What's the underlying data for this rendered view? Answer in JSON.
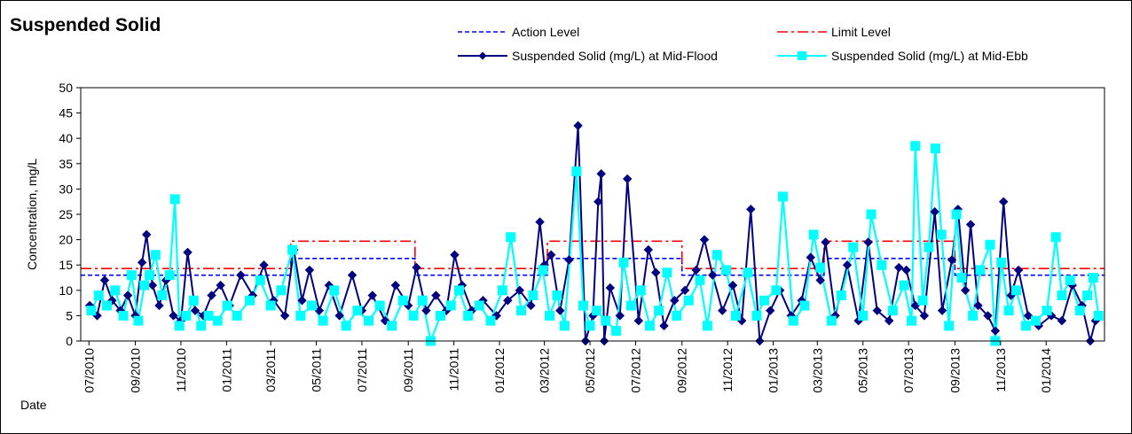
{
  "chart_data": {
    "type": "line",
    "title": "Suspended Solid",
    "xlabel": "Date",
    "ylabel": "Concentration, mg/L",
    "ylim": [
      0,
      50
    ],
    "yticks": [
      0,
      5,
      10,
      15,
      20,
      25,
      30,
      35,
      40,
      45,
      50
    ],
    "xlim": [
      "2010-06-20",
      "2014-03-20"
    ],
    "xticks": [
      "07/2010",
      "09/2010",
      "11/2010",
      "01/2011",
      "03/2011",
      "05/2011",
      "07/2011",
      "09/2011",
      "11/2011",
      "01/2012",
      "03/2012",
      "05/2012",
      "07/2012",
      "09/2012",
      "11/2012",
      "01/2013",
      "03/2013",
      "05/2013",
      "07/2013",
      "09/2013",
      "11/2013",
      "01/2014"
    ],
    "grid": false,
    "legend_position": "top-right",
    "series": [
      {
        "name": "Action Level",
        "style": "dashed",
        "color": "#0000ff",
        "steps": [
          {
            "x": "2010-06-20",
            "y": 13
          },
          {
            "x": "2011-03-28",
            "y": 16.3
          },
          {
            "x": "2011-09-10",
            "y": 13
          },
          {
            "x": "2012-03-05",
            "y": 16.3
          },
          {
            "x": "2012-09-01",
            "y": 13
          },
          {
            "x": "2013-03-10",
            "y": 16.3
          },
          {
            "x": "2013-09-01",
            "y": 13
          },
          {
            "x": "2014-03-20",
            "y": 13
          }
        ]
      },
      {
        "name": "Limit Level",
        "style": "dashdot",
        "color": "#ff0000",
        "steps": [
          {
            "x": "2010-06-20",
            "y": 14.3
          },
          {
            "x": "2011-03-28",
            "y": 19.7
          },
          {
            "x": "2011-09-10",
            "y": 14.3
          },
          {
            "x": "2012-03-05",
            "y": 19.7
          },
          {
            "x": "2012-09-01",
            "y": 14.3
          },
          {
            "x": "2013-03-10",
            "y": 19.7
          },
          {
            "x": "2013-09-01",
            "y": 14.3
          },
          {
            "x": "2014-03-20",
            "y": 14.3
          }
        ]
      },
      {
        "name": "Suspended Solid (mg/L) at Mid-Flood",
        "color": "#000080",
        "marker": "diamond",
        "points": [
          [
            "2010-07-02",
            7
          ],
          [
            "2010-07-12",
            5
          ],
          [
            "2010-07-22",
            12
          ],
          [
            "2010-08-01",
            8
          ],
          [
            "2010-08-12",
            6
          ],
          [
            "2010-08-22",
            9
          ],
          [
            "2010-09-01",
            5
          ],
          [
            "2010-09-10",
            15.5
          ],
          [
            "2010-09-16",
            21
          ],
          [
            "2010-09-24",
            11
          ],
          [
            "2010-10-03",
            7
          ],
          [
            "2010-10-12",
            12
          ],
          [
            "2010-10-22",
            5
          ],
          [
            "2010-11-01",
            4
          ],
          [
            "2010-11-10",
            17.5
          ],
          [
            "2010-11-20",
            6
          ],
          [
            "2010-12-01",
            5
          ],
          [
            "2010-12-12",
            9
          ],
          [
            "2010-12-24",
            11
          ],
          [
            "2011-01-05",
            7
          ],
          [
            "2011-01-20",
            13
          ],
          [
            "2011-02-05",
            9
          ],
          [
            "2011-02-20",
            15
          ],
          [
            "2011-03-05",
            8
          ],
          [
            "2011-03-20",
            5
          ],
          [
            "2011-04-01",
            18
          ],
          [
            "2011-04-12",
            8
          ],
          [
            "2011-04-22",
            14
          ],
          [
            "2011-05-05",
            6
          ],
          [
            "2011-05-18",
            11
          ],
          [
            "2011-06-01",
            5
          ],
          [
            "2011-06-18",
            13
          ],
          [
            "2011-07-01",
            6
          ],
          [
            "2011-07-15",
            9
          ],
          [
            "2011-08-01",
            4
          ],
          [
            "2011-08-15",
            11
          ],
          [
            "2011-09-01",
            7
          ],
          [
            "2011-09-12",
            14.5
          ],
          [
            "2011-09-25",
            6
          ],
          [
            "2011-10-08",
            9
          ],
          [
            "2011-10-22",
            6
          ],
          [
            "2011-11-02",
            17
          ],
          [
            "2011-11-12",
            11
          ],
          [
            "2011-11-25",
            6
          ],
          [
            "2011-12-10",
            8
          ],
          [
            "2011-12-28",
            5
          ],
          [
            "2012-01-12",
            8
          ],
          [
            "2012-01-28",
            10
          ],
          [
            "2012-02-12",
            7
          ],
          [
            "2012-02-24",
            23.5
          ],
          [
            "2012-03-01",
            15
          ],
          [
            "2012-03-10",
            17
          ],
          [
            "2012-03-22",
            6
          ],
          [
            "2012-04-03",
            16
          ],
          [
            "2012-04-15",
            42.5
          ],
          [
            "2012-04-25",
            0
          ],
          [
            "2012-05-05",
            5
          ],
          [
            "2012-05-12",
            27.5
          ],
          [
            "2012-05-16",
            33
          ],
          [
            "2012-05-20",
            0
          ],
          [
            "2012-05-28",
            10.5
          ],
          [
            "2012-06-10",
            5
          ],
          [
            "2012-06-20",
            32
          ],
          [
            "2012-07-05",
            4
          ],
          [
            "2012-07-18",
            18
          ],
          [
            "2012-07-28",
            13.5
          ],
          [
            "2012-08-08",
            3
          ],
          [
            "2012-08-22",
            8
          ],
          [
            "2012-09-05",
            10
          ],
          [
            "2012-09-20",
            14
          ],
          [
            "2012-10-01",
            20
          ],
          [
            "2012-10-12",
            13
          ],
          [
            "2012-10-25",
            6
          ],
          [
            "2012-11-08",
            11
          ],
          [
            "2012-11-20",
            4
          ],
          [
            "2012-12-02",
            26
          ],
          [
            "2012-12-14",
            0
          ],
          [
            "2012-12-28",
            6
          ],
          [
            "2013-01-10",
            10
          ],
          [
            "2013-01-25",
            5
          ],
          [
            "2013-02-08",
            8
          ],
          [
            "2013-02-20",
            16.5
          ],
          [
            "2013-03-05",
            12
          ],
          [
            "2013-03-12",
            19.5
          ],
          [
            "2013-03-25",
            5
          ],
          [
            "2013-04-10",
            15
          ],
          [
            "2013-04-25",
            4
          ],
          [
            "2013-05-08",
            19.5
          ],
          [
            "2013-05-20",
            6
          ],
          [
            "2013-06-05",
            4
          ],
          [
            "2013-06-18",
            14.5
          ],
          [
            "2013-06-28",
            14
          ],
          [
            "2013-07-10",
            7
          ],
          [
            "2013-07-22",
            5
          ],
          [
            "2013-08-05",
            25.5
          ],
          [
            "2013-08-15",
            6
          ],
          [
            "2013-08-28",
            16
          ],
          [
            "2013-09-05",
            26
          ],
          [
            "2013-09-15",
            10
          ],
          [
            "2013-09-22",
            23
          ],
          [
            "2013-10-02",
            7
          ],
          [
            "2013-10-15",
            5
          ],
          [
            "2013-10-25",
            2
          ],
          [
            "2013-11-05",
            27.5
          ],
          [
            "2013-11-15",
            9
          ],
          [
            "2013-11-25",
            14
          ],
          [
            "2013-12-08",
            5
          ],
          [
            "2013-12-22",
            3
          ],
          [
            "2014-01-08",
            5
          ],
          [
            "2014-01-22",
            4
          ],
          [
            "2014-02-05",
            11
          ],
          [
            "2014-02-18",
            7
          ],
          [
            "2014-03-01",
            0
          ],
          [
            "2014-03-08",
            4
          ]
        ]
      },
      {
        "name": "Suspended Solid (mg/L) at Mid-Ebb",
        "color": "#00ffff",
        "marker": "square",
        "points": [
          [
            "2010-07-04",
            6
          ],
          [
            "2010-07-14",
            9
          ],
          [
            "2010-07-25",
            7
          ],
          [
            "2010-08-05",
            10
          ],
          [
            "2010-08-16",
            5
          ],
          [
            "2010-08-27",
            13
          ],
          [
            "2010-09-05",
            4
          ],
          [
            "2010-09-13",
            11
          ],
          [
            "2010-09-20",
            13
          ],
          [
            "2010-09-28",
            17
          ],
          [
            "2010-10-07",
            9
          ],
          [
            "2010-10-17",
            13
          ],
          [
            "2010-10-24",
            28
          ],
          [
            "2010-10-30",
            3
          ],
          [
            "2010-11-08",
            5
          ],
          [
            "2010-11-18",
            8
          ],
          [
            "2010-11-28",
            3
          ],
          [
            "2010-12-08",
            5
          ],
          [
            "2010-12-20",
            4
          ],
          [
            "2011-01-02",
            7
          ],
          [
            "2011-01-15",
            5
          ],
          [
            "2011-02-01",
            8
          ],
          [
            "2011-02-15",
            12
          ],
          [
            "2011-03-01",
            7
          ],
          [
            "2011-03-15",
            10
          ],
          [
            "2011-03-30",
            18
          ],
          [
            "2011-04-10",
            5
          ],
          [
            "2011-04-25",
            7
          ],
          [
            "2011-05-10",
            4
          ],
          [
            "2011-05-25",
            10
          ],
          [
            "2011-06-10",
            3
          ],
          [
            "2011-06-25",
            6
          ],
          [
            "2011-07-10",
            4
          ],
          [
            "2011-07-25",
            7
          ],
          [
            "2011-08-10",
            3
          ],
          [
            "2011-08-25",
            8
          ],
          [
            "2011-09-08",
            5
          ],
          [
            "2011-09-20",
            8
          ],
          [
            "2011-10-01",
            0
          ],
          [
            "2011-10-14",
            5
          ],
          [
            "2011-10-28",
            7
          ],
          [
            "2011-11-08",
            10
          ],
          [
            "2011-11-20",
            5
          ],
          [
            "2011-12-05",
            7
          ],
          [
            "2011-12-20",
            4
          ],
          [
            "2012-01-05",
            10
          ],
          [
            "2012-01-16",
            20.5
          ],
          [
            "2012-01-30",
            6
          ],
          [
            "2012-02-15",
            9
          ],
          [
            "2012-02-28",
            14
          ],
          [
            "2012-03-08",
            5
          ],
          [
            "2012-03-18",
            9
          ],
          [
            "2012-03-28",
            3
          ],
          [
            "2012-04-13",
            33.5
          ],
          [
            "2012-04-22",
            7
          ],
          [
            "2012-05-01",
            3
          ],
          [
            "2012-05-10",
            6
          ],
          [
            "2012-05-22",
            4
          ],
          [
            "2012-06-05",
            2
          ],
          [
            "2012-06-15",
            15.5
          ],
          [
            "2012-06-25",
            7
          ],
          [
            "2012-07-08",
            10
          ],
          [
            "2012-07-20",
            3
          ],
          [
            "2012-08-01",
            6
          ],
          [
            "2012-08-12",
            13.5
          ],
          [
            "2012-08-25",
            5
          ],
          [
            "2012-09-10",
            8
          ],
          [
            "2012-09-25",
            12
          ],
          [
            "2012-10-05",
            3
          ],
          [
            "2012-10-18",
            17
          ],
          [
            "2012-10-30",
            14
          ],
          [
            "2012-11-12",
            5
          ],
          [
            "2012-11-28",
            13.5
          ],
          [
            "2012-12-10",
            5
          ],
          [
            "2012-12-20",
            8
          ],
          [
            "2013-01-05",
            10
          ],
          [
            "2013-01-14",
            28.5
          ],
          [
            "2013-01-28",
            4
          ],
          [
            "2013-02-12",
            7
          ],
          [
            "2013-02-24",
            21
          ],
          [
            "2013-03-05",
            14.5
          ],
          [
            "2013-03-20",
            4
          ],
          [
            "2013-04-02",
            9
          ],
          [
            "2013-04-18",
            18.5
          ],
          [
            "2013-05-01",
            5
          ],
          [
            "2013-05-12",
            25
          ],
          [
            "2013-05-26",
            15
          ],
          [
            "2013-06-10",
            6
          ],
          [
            "2013-06-25",
            11
          ],
          [
            "2013-07-05",
            4
          ],
          [
            "2013-07-10",
            38.5
          ],
          [
            "2013-07-20",
            8
          ],
          [
            "2013-07-28",
            18.5
          ],
          [
            "2013-08-06",
            38
          ],
          [
            "2013-08-14",
            21
          ],
          [
            "2013-08-24",
            3
          ],
          [
            "2013-09-03",
            25
          ],
          [
            "2013-09-10",
            12.5
          ],
          [
            "2013-09-25",
            5
          ],
          [
            "2013-10-05",
            14
          ],
          [
            "2013-10-18",
            19
          ],
          [
            "2013-10-25",
            0
          ],
          [
            "2013-11-02",
            15.5
          ],
          [
            "2013-11-12",
            6
          ],
          [
            "2013-11-22",
            10
          ],
          [
            "2013-12-05",
            3
          ],
          [
            "2013-12-18",
            4
          ],
          [
            "2014-01-02",
            6
          ],
          [
            "2014-01-14",
            20.5
          ],
          [
            "2014-01-22",
            9
          ],
          [
            "2014-02-02",
            12
          ],
          [
            "2014-02-15",
            6
          ],
          [
            "2014-02-25",
            9
          ],
          [
            "2014-03-05",
            12.5
          ],
          [
            "2014-03-12",
            5
          ]
        ]
      }
    ]
  }
}
